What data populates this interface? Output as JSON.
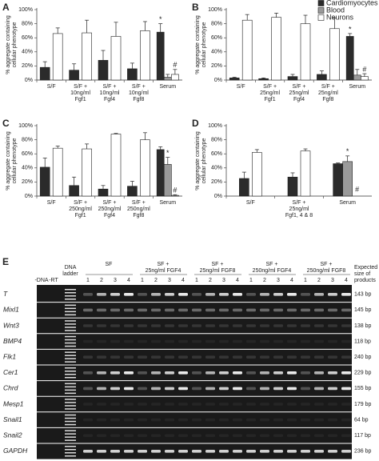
{
  "chart_data": [
    {
      "type": "bar",
      "panel": "A",
      "ylabel": [
        "% aggregate containing",
        "cellular phenotype"
      ],
      "categories": [
        [
          "S/F"
        ],
        [
          "S/F +",
          "10ng/ml",
          "Fgf1"
        ],
        [
          "S/F +",
          "10ng/ml",
          "Fgf4"
        ],
        [
          "S/F +",
          "10ng/ml",
          "Fgf8"
        ],
        [
          "Serum"
        ]
      ],
      "series": [
        {
          "name": "Cardiomyocytes",
          "color": "#2b2b2b",
          "values": [
            18,
            14,
            28,
            16,
            68
          ],
          "errors": [
            8,
            9,
            14,
            8,
            12
          ]
        },
        {
          "name": "Blood",
          "color": "#9a9a9a",
          "values": [
            null,
            null,
            null,
            null,
            4
          ],
          "errors": [
            null,
            null,
            null,
            null,
            4
          ]
        },
        {
          "name": "Neurons",
          "color": "#ffffff",
          "values": [
            66,
            67,
            62,
            70,
            8
          ],
          "errors": [
            8,
            18,
            20,
            13,
            7
          ]
        }
      ],
      "ylim": [
        0,
        100
      ],
      "yticks": [
        {
          "value": 0,
          "label": "0%"
        },
        {
          "value": 20,
          "label": "20%"
        },
        {
          "value": 40,
          "label": "40%"
        },
        {
          "value": 60,
          "label": "60%"
        },
        {
          "value": 80,
          "label": "80%"
        },
        {
          "value": 100,
          "label": "100%"
        }
      ],
      "annotations": [
        {
          "text": "*",
          "series": "Cardiomyocytes",
          "category": "Serum"
        },
        {
          "text": "#",
          "series": "Neurons",
          "category": "Serum"
        }
      ]
    },
    {
      "type": "bar",
      "panel": "B",
      "ylabel": [
        "% aggregate containing",
        "cellular phenotype"
      ],
      "legend": "upper right",
      "categories": [
        [
          "S/F"
        ],
        [
          "S/F +",
          "25ng/ml",
          "Fgf1"
        ],
        [
          "S/F +",
          "25ng/ml",
          "Fgf4"
        ],
        [
          "S/F +",
          "25ng/ml",
          "Fgf8"
        ],
        [
          "Serum"
        ]
      ],
      "series": [
        {
          "name": "Cardiomyocytes",
          "color": "#2b2b2b",
          "values": [
            3,
            2,
            5,
            8,
            62
          ],
          "errors": [
            1,
            1,
            3,
            5,
            4
          ]
        },
        {
          "name": "Blood",
          "color": "#9a9a9a",
          "values": [
            null,
            null,
            null,
            null,
            7
          ],
          "errors": [
            null,
            null,
            null,
            null,
            8
          ]
        },
        {
          "name": "Neurons",
          "color": "#ffffff",
          "values": [
            85,
            89,
            80,
            73,
            5
          ],
          "errors": [
            8,
            6,
            12,
            15,
            4
          ]
        }
      ],
      "ylim": [
        0,
        100
      ],
      "yticks": [
        {
          "value": 0,
          "label": "0%"
        },
        {
          "value": 20,
          "label": "20%"
        },
        {
          "value": 40,
          "label": "40%"
        },
        {
          "value": 60,
          "label": "60%"
        },
        {
          "value": 80,
          "label": "80%"
        },
        {
          "value": 100,
          "label": "100%"
        }
      ],
      "annotations": [
        {
          "text": "*",
          "series": "Cardiomyocytes",
          "category": "Serum"
        },
        {
          "text": "#",
          "series": "Neurons",
          "category": "Serum"
        }
      ]
    },
    {
      "type": "bar",
      "panel": "C",
      "ylabel": [
        "% aggregate containing",
        "cellular phenotype"
      ],
      "categories": [
        [
          "S/F"
        ],
        [
          "S/F +",
          "250ng/ml",
          "Fgf1"
        ],
        [
          "S/F +",
          "250ng/ml",
          "Fgf4"
        ],
        [
          "S/F +",
          "250ng/ml",
          "Fgf8"
        ],
        [
          "Serum"
        ]
      ],
      "series": [
        {
          "name": "Cardiomyocytes",
          "color": "#2b2b2b",
          "values": [
            41,
            15,
            10,
            14,
            66
          ],
          "errors": [
            13,
            12,
            5,
            7,
            4
          ]
        },
        {
          "name": "Blood",
          "color": "#9a9a9a",
          "values": [
            null,
            null,
            null,
            null,
            45
          ],
          "errors": [
            null,
            null,
            null,
            null,
            10
          ]
        },
        {
          "name": "Neurons",
          "color": "#ffffff",
          "values": [
            68,
            67,
            88,
            80,
            1
          ],
          "errors": [
            3,
            7,
            1,
            10,
            1
          ]
        }
      ],
      "ylim": [
        0,
        100
      ],
      "yticks": [
        {
          "value": 0,
          "label": "0%"
        },
        {
          "value": 20,
          "label": "20%"
        },
        {
          "value": 40,
          "label": "40%"
        },
        {
          "value": 60,
          "label": "60%"
        },
        {
          "value": 80,
          "label": "80%"
        },
        {
          "value": 100,
          "label": "100%"
        }
      ],
      "annotations": [
        {
          "text": "*",
          "series": "Blood",
          "category": "Serum"
        },
        {
          "text": "#",
          "series": "Neurons",
          "category": "Serum"
        }
      ]
    },
    {
      "type": "bar",
      "panel": "D",
      "ylabel": [
        "% aggregate containing",
        "cellular phenotype"
      ],
      "categories": [
        [
          "S/F"
        ],
        [
          "S/F +",
          "25ng/ml",
          "Fgf1, 4 & 8"
        ],
        [
          "Serum"
        ]
      ],
      "series": [
        {
          "name": "Cardiomyocytes",
          "color": "#2b2b2b",
          "values": [
            25,
            27,
            46
          ],
          "errors": [
            9,
            6,
            1
          ]
        },
        {
          "name": "Blood",
          "color": "#9a9a9a",
          "values": [
            null,
            null,
            49
          ],
          "errors": [
            null,
            null,
            8
          ]
        },
        {
          "name": "Neurons",
          "color": "#ffffff",
          "values": [
            62,
            64,
            null
          ],
          "errors": [
            4,
            3,
            null
          ]
        }
      ],
      "ylim": [
        0,
        100
      ],
      "yticks": [
        {
          "value": 0,
          "label": "0%"
        },
        {
          "value": 20,
          "label": "20%"
        },
        {
          "value": 40,
          "label": "40%"
        },
        {
          "value": 60,
          "label": "60%"
        },
        {
          "value": 80,
          "label": "80%"
        },
        {
          "value": 100,
          "label": "100%"
        }
      ],
      "annotations": [
        {
          "text": "*",
          "series": "Blood",
          "category": "Serum"
        },
        {
          "text": "#",
          "series": "Neurons",
          "category": "Serum"
        }
      ]
    }
  ],
  "gel": {
    "panel": "E",
    "controls": [
      "-DNA",
      "-RT"
    ],
    "ladder": [
      "DNA",
      "ladder"
    ],
    "groups": [
      {
        "label": [
          "SF"
        ],
        "lanes": [
          "1",
          "2",
          "3",
          "4"
        ]
      },
      {
        "label": [
          "SF +",
          "25ng/ml FGF4"
        ],
        "lanes": [
          "1",
          "2",
          "3",
          "4"
        ]
      },
      {
        "label": [
          "SF +",
          "25ng/ml FGF8"
        ],
        "lanes": [
          "1",
          "2",
          "3",
          "4"
        ]
      },
      {
        "label": [
          "SF +",
          "250ng/ml FGF4"
        ],
        "lanes": [
          "1",
          "2",
          "3",
          "4"
        ]
      },
      {
        "label": [
          "SF +",
          "250ng/ml FGF8"
        ],
        "lanes": [
          "1",
          "2",
          "3",
          "4"
        ]
      }
    ],
    "size_header": [
      "Expected",
      "size of",
      "products"
    ],
    "rows": [
      {
        "gene": "T",
        "size": "143 bp"
      },
      {
        "gene": "Mixl1",
        "size": "145 bp"
      },
      {
        "gene": "Wnt3",
        "size": "138 bp"
      },
      {
        "gene": "BMP4",
        "size": "118 bp"
      },
      {
        "gene": "Flk1",
        "size": "240 bp"
      },
      {
        "gene": "Cer1",
        "size": "229 bp"
      },
      {
        "gene": "Chrd",
        "size": "155 bp"
      },
      {
        "gene": "Mesp1",
        "size": "179 bp"
      },
      {
        "gene": "Snail1",
        "size": "64 bp"
      },
      {
        "gene": "Snail2",
        "size": "117 bp"
      },
      {
        "gene": "GAPDH",
        "size": "236 bp"
      }
    ]
  }
}
